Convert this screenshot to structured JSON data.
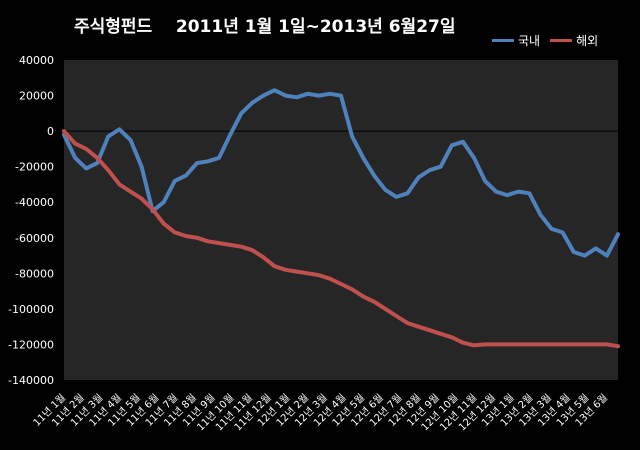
{
  "chart_data": {
    "type": "line",
    "title": "주식형펀드    2011년 1월 1일~2013년 6월27일",
    "xlabel": "",
    "ylabel": "",
    "ylim": [
      -140000,
      40000
    ],
    "y_ticks": [
      40000,
      20000,
      0,
      -20000,
      -40000,
      -60000,
      -80000,
      -100000,
      -120000,
      -140000
    ],
    "legend_position": "top-right",
    "grid": false,
    "categories": [
      "11년 1월",
      "11년 2월",
      "11년 3월",
      "11년 4월",
      "11년 5월",
      "11년 6월",
      "11년 7월",
      "11년 8월",
      "11년 9월",
      "11년 10월",
      "11년 11월",
      "11년 12월",
      "12년 1월",
      "12년 2월",
      "12년 3월",
      "12년 4월",
      "12년 5월",
      "12년 6월",
      "12년 7월",
      "12년 8월",
      "12년 9월",
      "12년 10월",
      "12년 11월",
      "12년 12월",
      "13년 1월",
      "13년 2월",
      "13년 3월",
      "13년 4월",
      "13년 5월",
      "13년 6월"
    ],
    "x": [
      0,
      0.02,
      0.04,
      0.06,
      0.08,
      0.1,
      0.12,
      0.14,
      0.16,
      0.18,
      0.2,
      0.22,
      0.24,
      0.26,
      0.28,
      0.3,
      0.32,
      0.34,
      0.36,
      0.38,
      0.4,
      0.42,
      0.44,
      0.46,
      0.48,
      0.5,
      0.52,
      0.54,
      0.56,
      0.58,
      0.6,
      0.62,
      0.64,
      0.66,
      0.68,
      0.7,
      0.72,
      0.74,
      0.76,
      0.78,
      0.8,
      0.82,
      0.84,
      0.86,
      0.88,
      0.9,
      0.92,
      0.94,
      0.96,
      0.98,
      1
    ],
    "series": [
      {
        "name": "국내",
        "color": "#4f81bd",
        "values": [
          -2000,
          -15000,
          -21000,
          -18000,
          -3000,
          1000,
          -5000,
          -20000,
          -45000,
          -40000,
          -28000,
          -25000,
          -18000,
          -17000,
          -15000,
          -2000,
          10000,
          16000,
          20000,
          23000,
          20000,
          19000,
          21000,
          20000,
          21000,
          20000,
          -3000,
          -15000,
          -25000,
          -33000,
          -37000,
          -35000,
          -26000,
          -22000,
          -20000,
          -8000,
          -6000,
          -15000,
          -28000,
          -34000,
          -36000,
          -34000,
          -35000,
          -47000,
          -55000,
          -57000,
          -68000,
          -70000,
          -66000,
          -70000,
          -58000
        ]
      },
      {
        "name": "해외",
        "color": "#c0504d",
        "values": [
          0,
          -7000,
          -10000,
          -15000,
          -22000,
          -30000,
          -34000,
          -38000,
          -44000,
          -52000,
          -57000,
          -59000,
          -60000,
          -62000,
          -63000,
          -64000,
          -65000,
          -67000,
          -71000,
          -76000,
          -78000,
          -79000,
          -80000,
          -81000,
          -83000,
          -86000,
          -89000,
          -93000,
          -96000,
          -100000,
          -104000,
          -108000,
          -110000,
          -112000,
          -114000,
          -116000,
          -119000,
          -120500,
          -120000,
          -120000,
          -120000,
          -120000,
          -120000,
          -120000,
          -120000,
          -120000,
          -120000,
          -120000,
          -120000,
          -120000,
          -121000
        ]
      }
    ]
  }
}
